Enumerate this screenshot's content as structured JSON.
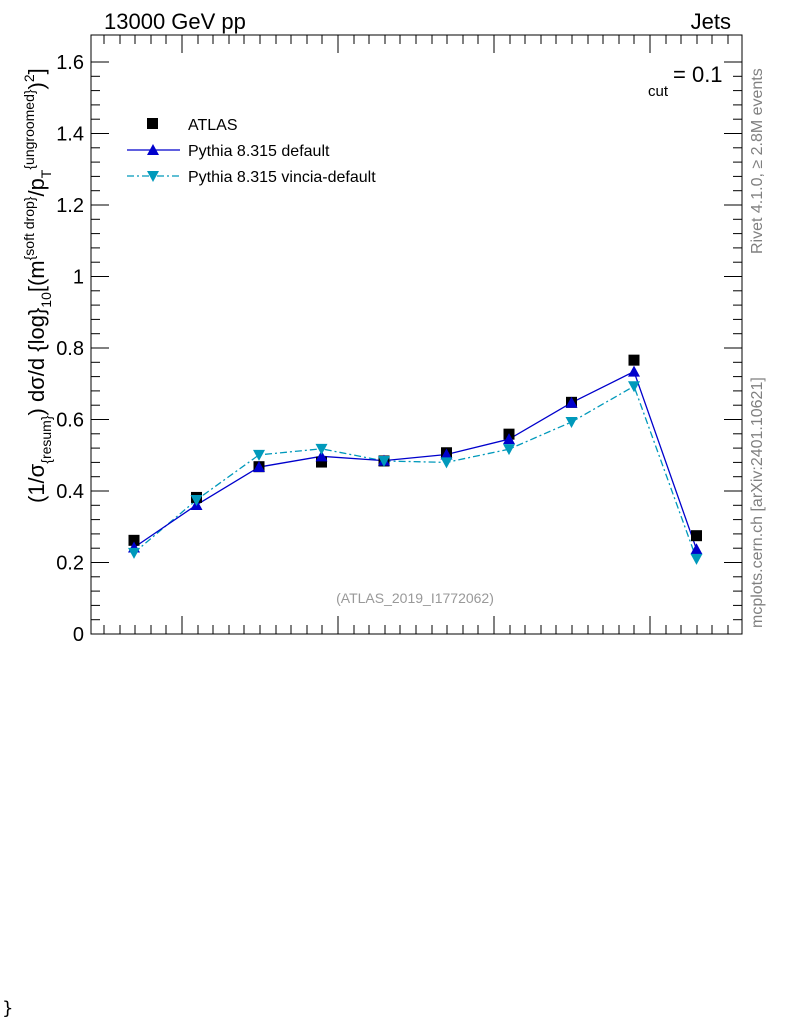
{
  "header": {
    "energy": "13000 GeV pp",
    "category": "Jets",
    "cut_label_sub": "cut",
    "cut_label_rest": "= 0.1"
  },
  "side_labels": {
    "rivet": "Rivet 4.1.0, ≥ 2.8M events",
    "mcplots": "mcplots.cern.ch [arXiv:2401.10621]"
  },
  "watermark": "(ATLAS_2019_I1772062)",
  "y_axis_label": {
    "p1": "(1/σ",
    "s1": "{resum}",
    "p2": ") dσ/d {log}",
    "s2": "10",
    "p3": "[(m",
    "sup1": "{soft drop}",
    "p4": "/p",
    "s3": "T",
    "sup2": "{ungroomed}",
    "p5": ")",
    "sup3": "2",
    "p6": "]"
  },
  "stray_text": "}",
  "legend": [
    {
      "label": "ATLAS",
      "color": "#000000",
      "marker": "square",
      "line": "none"
    },
    {
      "label": "Pythia 8.315 default",
      "color": "#0000cc",
      "marker": "triangle-up",
      "line": "solid"
    },
    {
      "label": "Pythia 8.315 vincia-default",
      "color": "#0099bb",
      "marker": "triangle-down",
      "line": "dashdot"
    }
  ],
  "chart_data": {
    "type": "scatter",
    "title": "",
    "xlabel": "",
    "ylabel": "(1/σ{resum}) dσ/d {log}10[(m{soft drop}/pT{ungroomed})2]",
    "x": [
      1,
      2,
      3,
      4,
      5,
      6,
      7,
      8,
      9,
      10
    ],
    "xlim": [
      0,
      10.4
    ],
    "ylim": [
      0,
      1.65
    ],
    "yticks": [
      0,
      0.2,
      0.4,
      0.6,
      0.8,
      1,
      1.2,
      1.4,
      1.6
    ],
    "ytick_labels": [
      "0",
      "0.2",
      "0.4",
      "0.6",
      "0.8",
      "1",
      "1.2",
      "1.4",
      "1.6"
    ],
    "series": [
      {
        "name": "ATLAS",
        "color": "#000000",
        "values": [
          0.262,
          0.382,
          0.468,
          0.481,
          0.484,
          0.507,
          0.559,
          0.648,
          0.766,
          0.275
        ]
      },
      {
        "name": "Pythia 8.315 default",
        "color": "#0000cc",
        "values": [
          0.242,
          0.361,
          0.467,
          0.497,
          0.485,
          0.502,
          0.545,
          0.647,
          0.734,
          0.237
        ]
      },
      {
        "name": "Pythia 8.315 vincia-default",
        "color": "#0099bb",
        "values": [
          0.227,
          0.375,
          0.501,
          0.518,
          0.484,
          0.48,
          0.517,
          0.593,
          0.693,
          0.21
        ]
      }
    ]
  }
}
